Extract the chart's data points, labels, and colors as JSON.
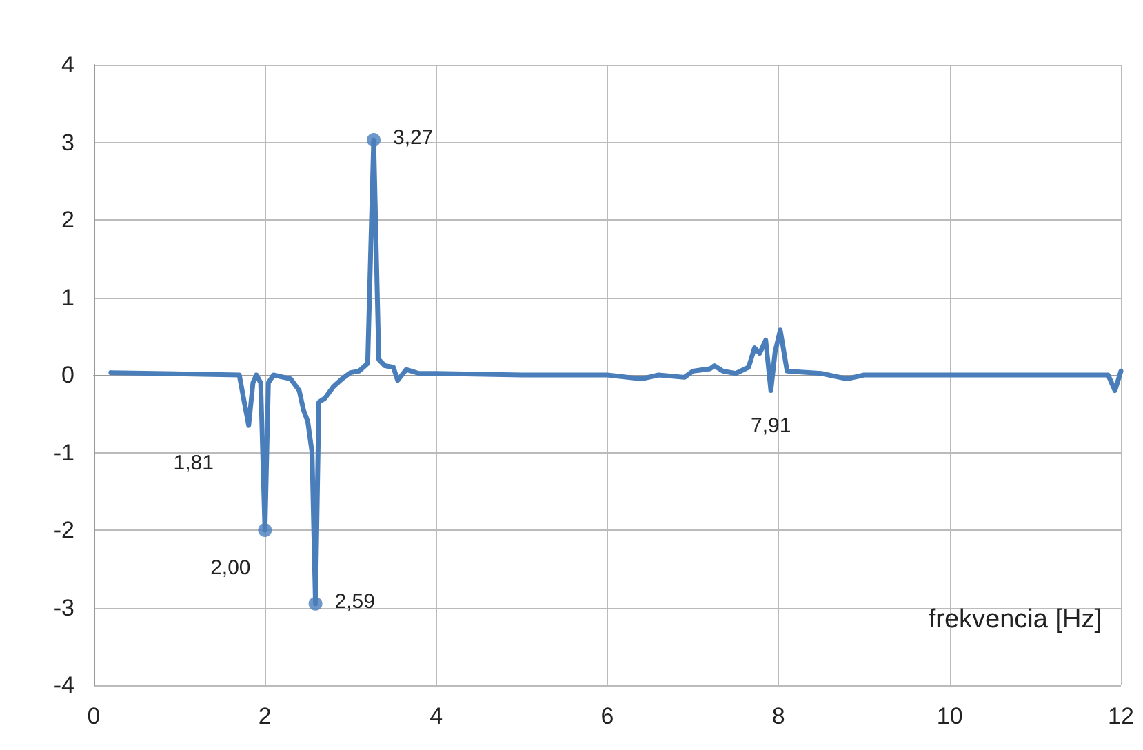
{
  "chart_data": {
    "type": "line",
    "xlabel": "frekvencia [Hz]",
    "xlim": [
      0,
      12
    ],
    "xticks": [
      0,
      2,
      4,
      6,
      8,
      10,
      12
    ],
    "ylim": [
      -4,
      4
    ],
    "yticks": [
      -4,
      -3,
      -2,
      -1,
      0,
      1,
      2,
      3,
      4
    ],
    "grid": true,
    "marker": "none",
    "line_style": "solid",
    "series": [
      {
        "color": "#4a7ebb",
        "x": [
          0.2,
          1.7,
          1.75,
          1.81,
          1.86,
          1.9,
          1.95,
          2.0,
          2.04,
          2.1,
          2.3,
          2.4,
          2.45,
          2.5,
          2.55,
          2.59,
          2.63,
          2.7,
          2.8,
          2.9,
          3.0,
          3.1,
          3.2,
          3.27,
          3.33,
          3.4,
          3.5,
          3.55,
          3.65,
          3.8,
          4,
          5,
          6,
          6.4,
          6.6,
          6.9,
          7.0,
          7.2,
          7.25,
          7.35,
          7.5,
          7.65,
          7.72,
          7.78,
          7.85,
          7.91,
          7.96,
          8.02,
          8.1,
          8.5,
          8.8,
          9,
          10,
          11,
          11.85,
          11.93,
          12
        ],
        "values": [
          0.03,
          0,
          -0.3,
          -0.65,
          -0.1,
          0,
          -0.1,
          -2.0,
          -0.1,
          0,
          -0.05,
          -0.2,
          -0.45,
          -0.6,
          -1.0,
          -2.95,
          -0.35,
          -0.3,
          -0.15,
          -0.05,
          0.03,
          0.05,
          0.15,
          3.03,
          0.2,
          0.12,
          0.1,
          -0.07,
          0.07,
          0.02,
          0.02,
          0,
          0,
          -0.05,
          0,
          -0.03,
          0.05,
          0.08,
          0.12,
          0.05,
          0.02,
          0.1,
          0.35,
          0.28,
          0.45,
          -0.2,
          0.3,
          0.58,
          0.05,
          0.02,
          -0.05,
          0,
          0,
          0,
          0,
          -0.2,
          0.05
        ]
      },
      {
        "type": "scatter",
        "color": "#4a7ebb",
        "marker": "circle",
        "x": [
          2.0,
          2.59,
          3.27
        ],
        "values": [
          -2.0,
          -2.95,
          3.03
        ]
      }
    ],
    "annotations": [
      {
        "text": "1,81",
        "x": 1.81,
        "y": -0.65
      },
      {
        "text": "2,00",
        "x": 2.0,
        "y": -2.0
      },
      {
        "text": "2,59",
        "x": 2.59,
        "y": -2.95
      },
      {
        "text": "3,27",
        "x": 3.27,
        "y": 3.03
      },
      {
        "text": "7,91",
        "x": 7.91,
        "y": -0.2
      }
    ]
  }
}
